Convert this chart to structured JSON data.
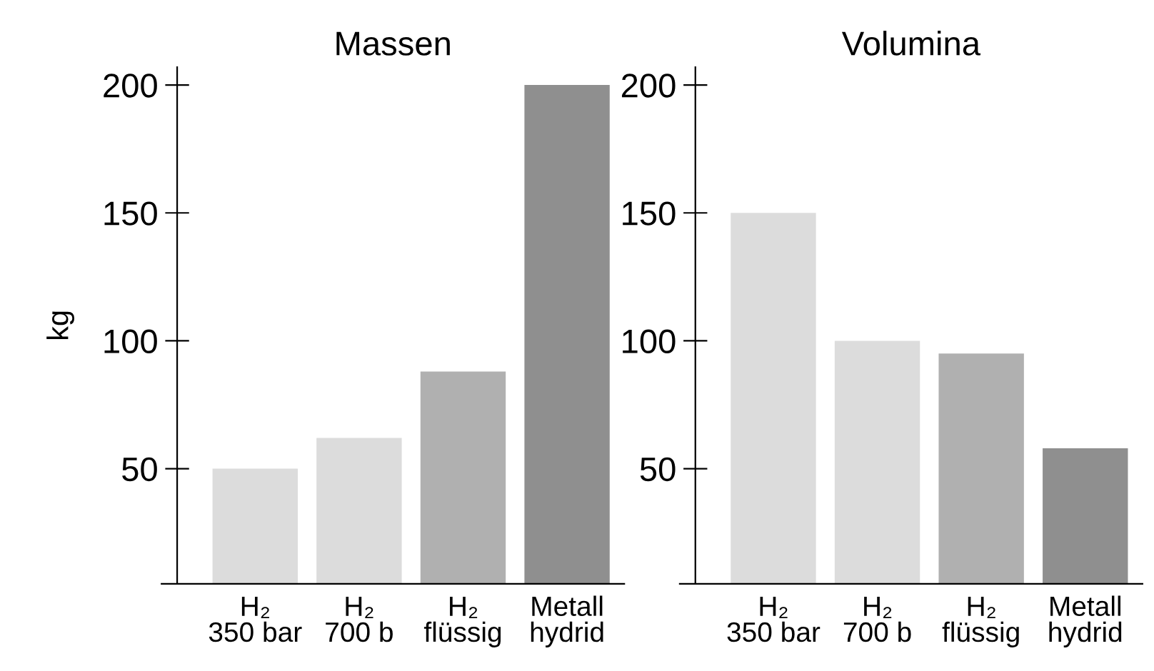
{
  "chart_data": [
    {
      "type": "bar",
      "title": "Massen",
      "ylabel": "kg",
      "categories": [
        "H₂\n350 bar",
        "H₂\n700 b",
        "H₂\nflüssig",
        "Metall\nhydrid"
      ],
      "values": [
        50,
        62,
        88,
        200
      ],
      "colors": [
        "#dcdcdc",
        "#dcdcdc",
        "#b0b0b0",
        "#8f8f8f"
      ],
      "ylim": [
        5,
        207
      ],
      "yticks": [
        50,
        100,
        150,
        200
      ],
      "grid": false
    },
    {
      "type": "bar",
      "title": "Volumina",
      "categories": [
        "H₂\n350 bar",
        "H₂\n700 b",
        "H₂\nflüssig",
        "Metall\nhydrid"
      ],
      "values": [
        150,
        100,
        95,
        58
      ],
      "colors": [
        "#dcdcdc",
        "#dcdcdc",
        "#b0b0b0",
        "#8f8f8f"
      ],
      "ylim": [
        5,
        207
      ],
      "yticks": [
        50,
        100,
        150,
        200
      ],
      "grid": false
    }
  ]
}
